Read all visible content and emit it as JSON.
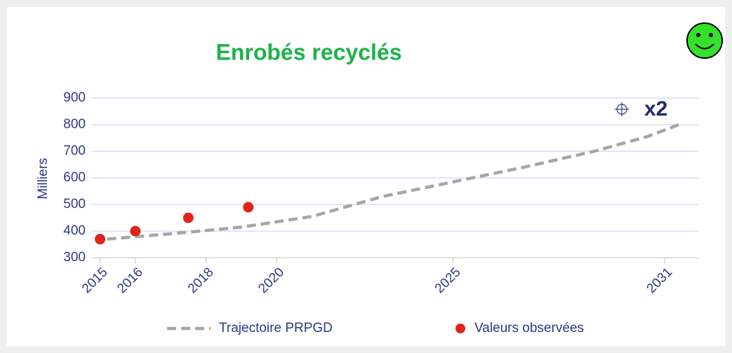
{
  "chart_data": {
    "type": "line",
    "title": "Enrobés recyclés",
    "y_label": "Milliers",
    "annotation": "x2",
    "xlim": [
      2014.75,
      2031.95
    ],
    "xticks": [
      2015,
      2016,
      2018,
      2020,
      2025,
      2031
    ],
    "ylim": [
      300,
      900
    ],
    "yticks": [
      300,
      400,
      500,
      600,
      700,
      800,
      900
    ],
    "grid": true,
    "series": [
      {
        "name": "Trajectoire PRPGD",
        "color": "#a6a6a6",
        "dashed": true,
        "x": [
          2015.2,
          2017,
          2019,
          2021,
          2023,
          2025,
          2027,
          2029,
          2030.5,
          2031.4
        ],
        "values": [
          370,
          390,
          415,
          455,
          530,
          585,
          640,
          700,
          755,
          800
        ]
      },
      {
        "name": "Valeurs observées",
        "color": "#e0231b",
        "markers_only": true,
        "x": [
          2015,
          2016,
          2017.5,
          2019.2
        ],
        "values": [
          370,
          400,
          450,
          490
        ]
      }
    ]
  }
}
